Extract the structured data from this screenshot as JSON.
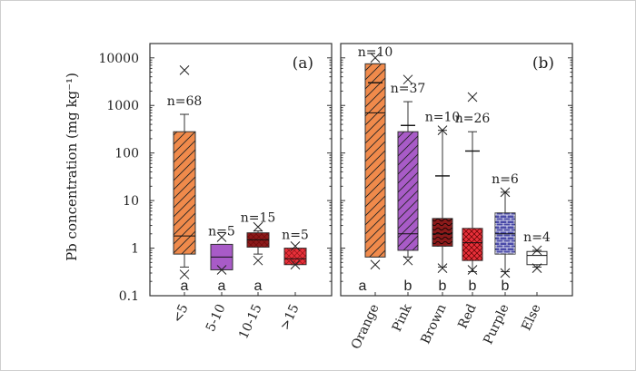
{
  "colors": {
    "axis": "#333333",
    "orange": "#f08a4b",
    "pink": "#a85bc7",
    "brown": "#8b1a1a",
    "red": "#e8303a",
    "purple": "#4a4aa8",
    "else": "#ffffff"
  },
  "ylabel": "Pb concentration (mg kg⁻¹)",
  "yticks": [
    "0.1",
    "1",
    "10",
    "100",
    "1000",
    "10000"
  ],
  "chart_data": [
    {
      "type": "boxplot",
      "panel": "(a)",
      "ylabel": "Pb concentration (mg kg⁻¹)",
      "yscale": "log",
      "ylim": [
        0.1,
        20000
      ],
      "categories": [
        "<5",
        "5-10",
        "10-15",
        ">15"
      ],
      "boxes": [
        {
          "category": "<5",
          "n": "n=68",
          "q1": 0.75,
          "median": 1.8,
          "q3": 280,
          "whisker_low": 0.4,
          "whisker_high": 650,
          "mean": null,
          "outliers": [
            0.28,
            5500
          ],
          "letter": "a",
          "pattern": "diag",
          "color": "#f08a4b"
        },
        {
          "category": "5-10",
          "n": "n=5",
          "q1": 0.35,
          "median": 0.65,
          "q3": 1.2,
          "whisker_low": 0.35,
          "whisker_high": 1.2,
          "mean": null,
          "outliers": [
            0.35,
            1.7
          ],
          "letter": "a",
          "pattern": "solid",
          "color": "#a85bc7"
        },
        {
          "category": "10-15",
          "n": "n=15",
          "q1": 1.05,
          "median": 1.5,
          "q3": 2.1,
          "whisker_low": 0.75,
          "whisker_high": 2.3,
          "mean": null,
          "outliers": [
            0.55,
            2.8
          ],
          "letter": "a",
          "pattern": "solid",
          "color": "#8b1a1a"
        },
        {
          "category": ">15",
          "n": "n=5",
          "q1": 0.45,
          "median": 0.6,
          "q3": 1.0,
          "whisker_low": 0.45,
          "whisker_high": 1.0,
          "mean": null,
          "outliers": [
            0.45,
            1.1
          ],
          "letter": "",
          "pattern": "solid",
          "color": "#e8303a"
        }
      ]
    },
    {
      "type": "boxplot",
      "panel": "(b)",
      "yscale": "log",
      "ylim": [
        0.1,
        20000
      ],
      "categories": [
        "Orange",
        "Pink",
        "Brown",
        "Red",
        "Purple",
        "Else"
      ],
      "boxes": [
        {
          "category": "Orange",
          "n": "n=10",
          "q1": 0.65,
          "median": 700,
          "q3": 7500,
          "whisker_low": 0.65,
          "whisker_high": 7500,
          "mean": 3000,
          "outliers": [
            0.45,
            10000
          ],
          "letter": "a",
          "pattern": "diag",
          "color": "#f08a4b"
        },
        {
          "category": "Pink",
          "n": "n=37",
          "q1": 0.9,
          "median": 2.0,
          "q3": 280,
          "whisker_low": 0.65,
          "whisker_high": 1200,
          "mean": 380,
          "outliers": [
            0.55,
            3500
          ],
          "letter": "b",
          "pattern": "diag",
          "color": "#a85bc7"
        },
        {
          "category": "Brown",
          "n": "n=10",
          "q1": 1.1,
          "median": 2.0,
          "q3": 4.2,
          "whisker_low": 0.4,
          "whisker_high": 300,
          "mean": 33,
          "outliers": [
            0.38,
            300
          ],
          "letter": "b",
          "pattern": "wave",
          "color": "#8b1a1a"
        },
        {
          "category": "Red",
          "n": "n=26",
          "q1": 0.55,
          "median": 1.3,
          "q3": 2.6,
          "whisker_low": 0.32,
          "whisker_high": 280,
          "mean": 110,
          "outliers": [
            0.35,
            1500
          ],
          "letter": "b",
          "pattern": "cross",
          "color": "#e8303a"
        },
        {
          "category": "Purple",
          "n": "n=6",
          "q1": 0.75,
          "median": 2.0,
          "q3": 5.5,
          "whisker_low": 0.32,
          "whisker_high": 15,
          "mean": null,
          "outliers": [
            0.3,
            15
          ],
          "letter": "b",
          "pattern": "brick",
          "color": "#4a4aa8"
        },
        {
          "category": "Else",
          "n": "n=4",
          "q1": 0.45,
          "median": 0.7,
          "q3": 0.85,
          "whisker_low": 0.4,
          "whisker_high": 0.9,
          "mean": null,
          "outliers": [
            0.38,
            0.9
          ],
          "letter": "",
          "pattern": "none",
          "color": "#ffffff"
        }
      ]
    }
  ]
}
